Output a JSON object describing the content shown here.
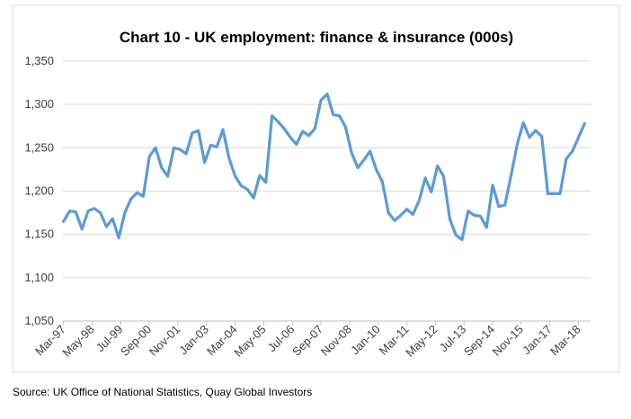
{
  "chart_data": {
    "type": "line",
    "title": "Chart 10 - UK employment: finance & insurance (000s)",
    "xlabel": "",
    "ylabel": "",
    "x_start": "Mar-97",
    "x_end": "Jun-18",
    "frequency": "quarterly",
    "x_tick_labels": [
      "Mar-97",
      "May-98",
      "Jul-99",
      "Sep-00",
      "Nov-01",
      "Jan-03",
      "Mar-04",
      "May-05",
      "Jul-06",
      "Sep-07",
      "Nov-08",
      "Jan-10",
      "Mar-11",
      "May-12",
      "Jul-13",
      "Sep-14",
      "Nov-15",
      "Jan-17",
      "Mar-18"
    ],
    "y_tick_labels": [
      "1,050",
      "1,100",
      "1,150",
      "1,200",
      "1,250",
      "1,300",
      "1,350"
    ],
    "ylim": [
      1050,
      1350
    ],
    "grid": true,
    "legend": "none",
    "line_color": "#5B9BD5",
    "values": [
      1165,
      1177,
      1176,
      1156,
      1177,
      1180,
      1175,
      1159,
      1168,
      1146,
      1175,
      1191,
      1198,
      1194,
      1240,
      1250,
      1227,
      1217,
      1250,
      1248,
      1243,
      1267,
      1270,
      1233,
      1253,
      1251,
      1271,
      1238,
      1217,
      1206,
      1202,
      1192,
      1218,
      1210,
      1287,
      1280,
      1272,
      1262,
      1254,
      1269,
      1264,
      1272,
      1305,
      1312,
      1288,
      1287,
      1274,
      1244,
      1227,
      1236,
      1246,
      1225,
      1211,
      1175,
      1166,
      1172,
      1179,
      1173,
      1189,
      1215,
      1199,
      1229,
      1217,
      1168,
      1149,
      1144,
      1177,
      1172,
      1171,
      1158,
      1207,
      1182,
      1184,
      1218,
      1254,
      1279,
      1262,
      1270,
      1263,
      1197,
      1197,
      1197,
      1237,
      1246,
      1262,
      1278
    ]
  },
  "source": "Source: UK Office of National Statistics, Quay Global Investors"
}
